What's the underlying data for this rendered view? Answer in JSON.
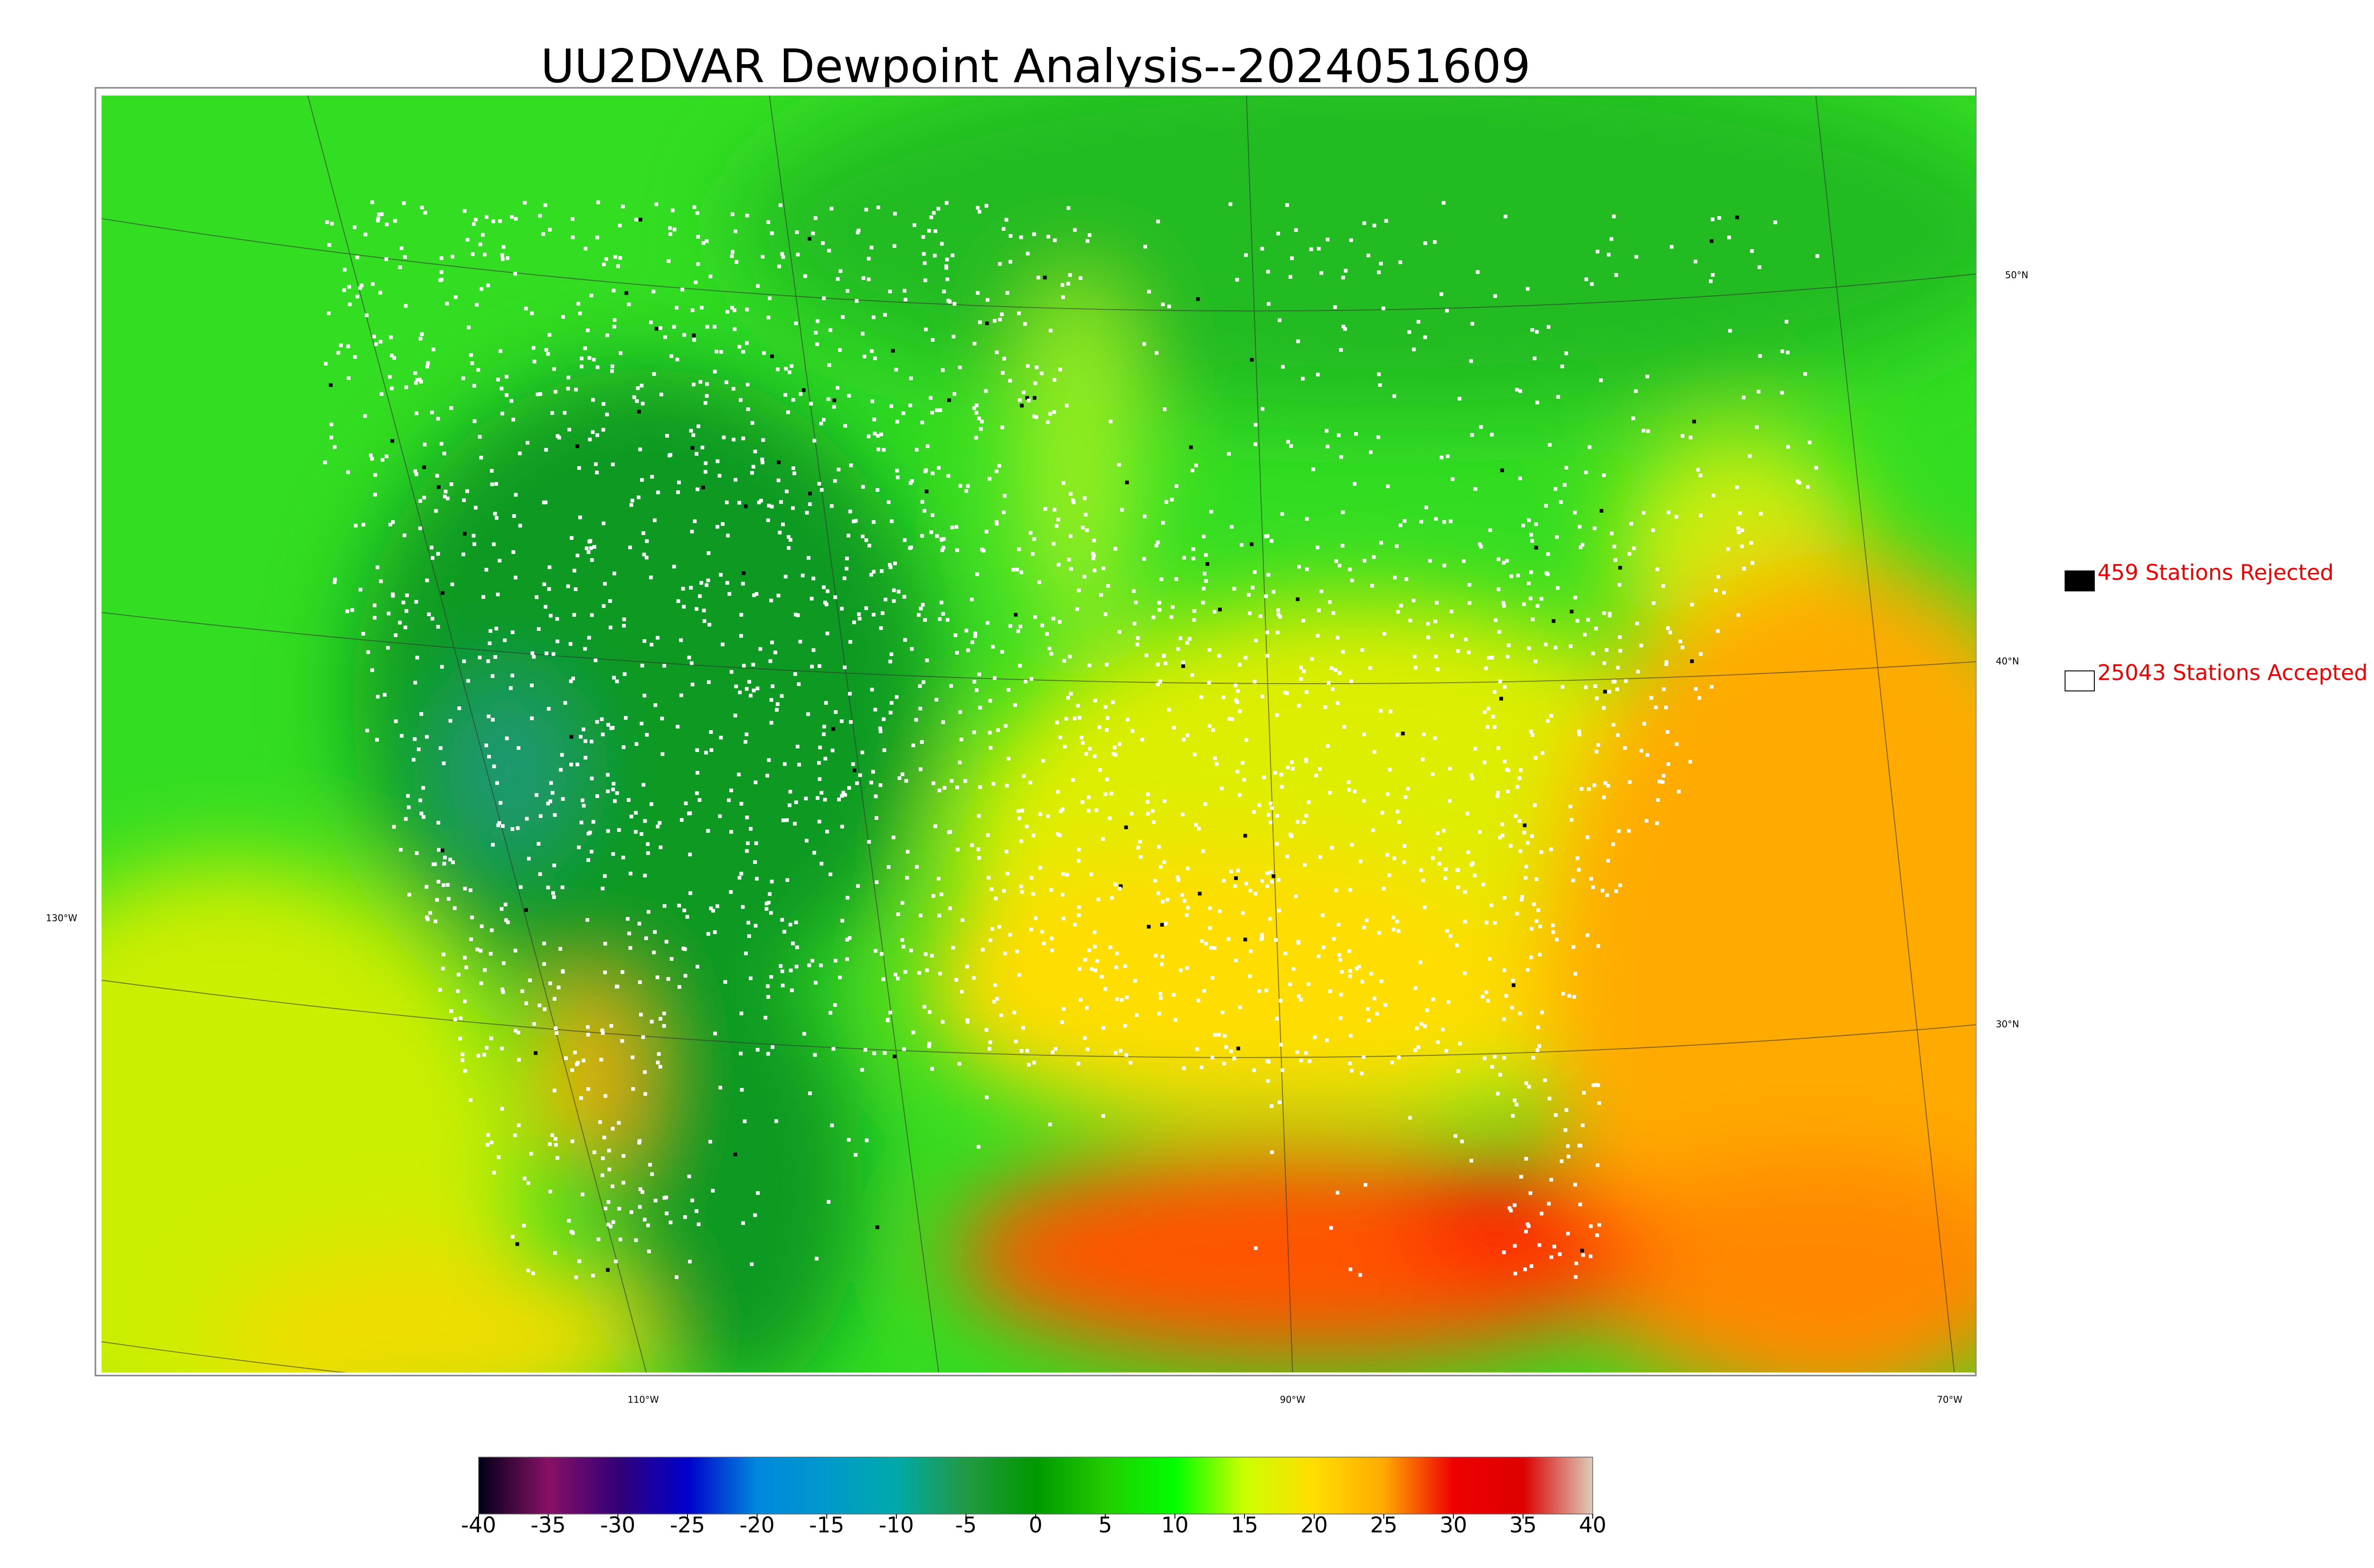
{
  "title": "UU2DVAR Dewpoint Analysis--2024051609",
  "legend": [
    {
      "label": "459 Stations Rejected",
      "color": "#000000"
    },
    {
      "label": "25043 Stations Accepted",
      "color": "#ffffff"
    }
  ],
  "latitude_labels": [
    "50°N",
    "40°N",
    "30°N"
  ],
  "longitude_labels": [
    "130°W",
    "110°W",
    "90°W",
    "70°W"
  ],
  "colorbar": {
    "lim": [
      -40,
      40
    ],
    "ticks": [
      -40,
      -35,
      -30,
      -25,
      -20,
      -15,
      -10,
      -5,
      0,
      5,
      10,
      15,
      20,
      25,
      30,
      35,
      40
    ],
    "colors": [
      "#000018",
      "#881166",
      "#330077",
      "#0000cc",
      "#0088dd",
      "#0099cc",
      "#00aaaa",
      "#229944",
      "#009900",
      "#22cc00",
      "#00ff00",
      "#ccff00",
      "#ffdd00",
      "#ffaa00",
      "#ee0000",
      "#dd0000",
      "#ddccbb"
    ]
  }
}
